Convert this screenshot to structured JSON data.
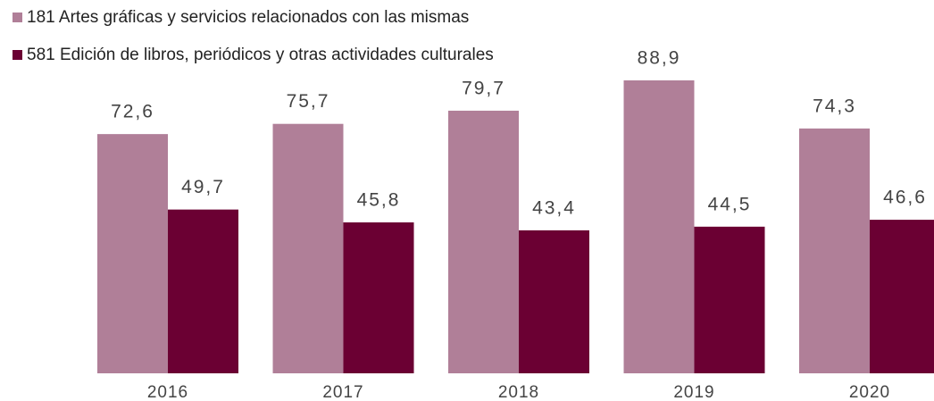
{
  "chart_data": {
    "type": "bar",
    "categories": [
      "2016",
      "2017",
      "2018",
      "2019",
      "2020"
    ],
    "series": [
      {
        "name": "181 Artes gráficas y servicios relacionados con las mismas",
        "color": "#b07f98",
        "values": [
          72.6,
          75.7,
          79.7,
          88.9,
          74.3
        ],
        "value_labels": [
          "72,6",
          "75,7",
          "79,7",
          "88,9",
          "74,3"
        ]
      },
      {
        "name": "581 Edición de libros, periódicos y otras actividades culturales",
        "color": "#6b0033",
        "values": [
          49.7,
          45.8,
          43.4,
          44.5,
          46.6
        ],
        "value_labels": [
          "49,7",
          "45,8",
          "43,4",
          "44,5",
          "46,6"
        ]
      }
    ]
  }
}
